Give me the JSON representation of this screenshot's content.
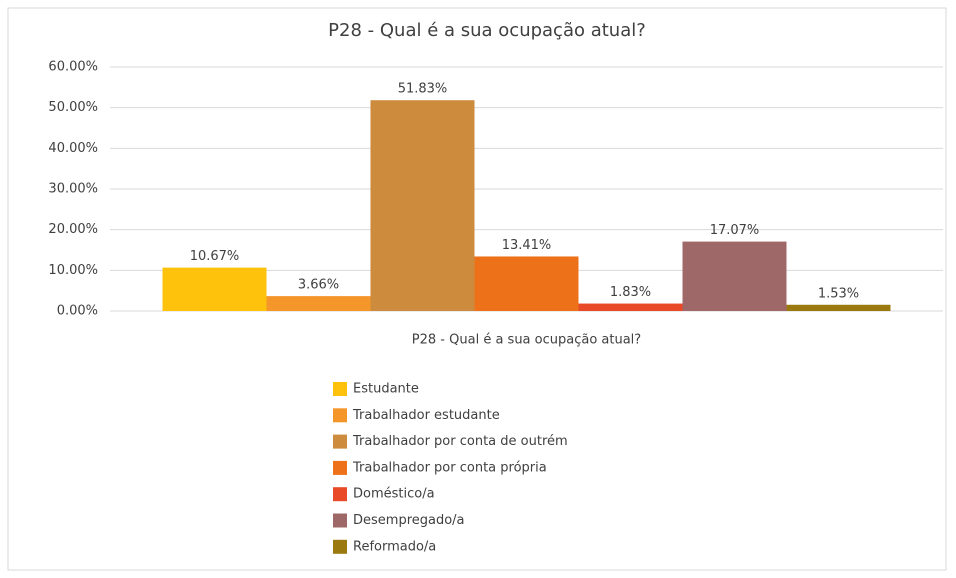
{
  "chart_data": {
    "type": "bar",
    "title": "P28 - Qual é a sua ocupação atual?",
    "categories": [
      "P28 - Qual é a sua ocupação atual?"
    ],
    "series": [
      {
        "name": "Estudante",
        "color": "#fec20c",
        "values": [
          10.67
        ],
        "value_labels": [
          "10.67%"
        ]
      },
      {
        "name": "Trabalhador estudante",
        "color": "#f5962a",
        "values": [
          3.66
        ],
        "value_labels": [
          "3.66%"
        ]
      },
      {
        "name": "Trabalhador por conta de outrém",
        "color": "#cd8b3e",
        "values": [
          51.83
        ],
        "value_labels": [
          "51.83%"
        ]
      },
      {
        "name": "Trabalhador por conta própria",
        "color": "#ec7118",
        "values": [
          13.41
        ],
        "value_labels": [
          "13.41%"
        ]
      },
      {
        "name": "Doméstico/a",
        "color": "#e84a27",
        "values": [
          1.83
        ],
        "value_labels": [
          "1.83%"
        ]
      },
      {
        "name": "Desempregado/a",
        "color": "#9e6868",
        "values": [
          17.07
        ],
        "value_labels": [
          "17.07%"
        ]
      },
      {
        "name": "Reformado/a",
        "color": "#9a7a0e",
        "values": [
          1.53
        ],
        "value_labels": [
          "1.53%"
        ]
      }
    ],
    "ylim": [
      0,
      60
    ],
    "yticks": [
      {
        "value": 0,
        "label": "0.00%"
      },
      {
        "value": 10,
        "label": "10.00%"
      },
      {
        "value": 20,
        "label": "20.00%"
      },
      {
        "value": 30,
        "label": "30.00%"
      },
      {
        "value": 40,
        "label": "40.00%"
      },
      {
        "value": 50,
        "label": "50.00%"
      },
      {
        "value": 60,
        "label": "60.00%"
      }
    ],
    "grid": true
  }
}
